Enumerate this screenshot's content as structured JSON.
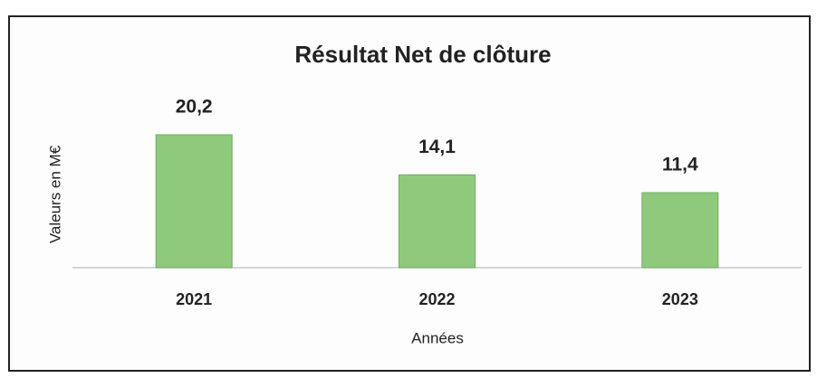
{
  "chart_data": {
    "type": "bar",
    "title": "Résultat Net de clôture",
    "categories": [
      "2021",
      "2022",
      "2023"
    ],
    "values": [
      20.2,
      14.1,
      11.4
    ],
    "value_labels": [
      "20,2",
      "14,1",
      "11,4"
    ],
    "color": "#8fca7c",
    "y_label": "Valeurs en M€",
    "x_label": "Années"
  }
}
